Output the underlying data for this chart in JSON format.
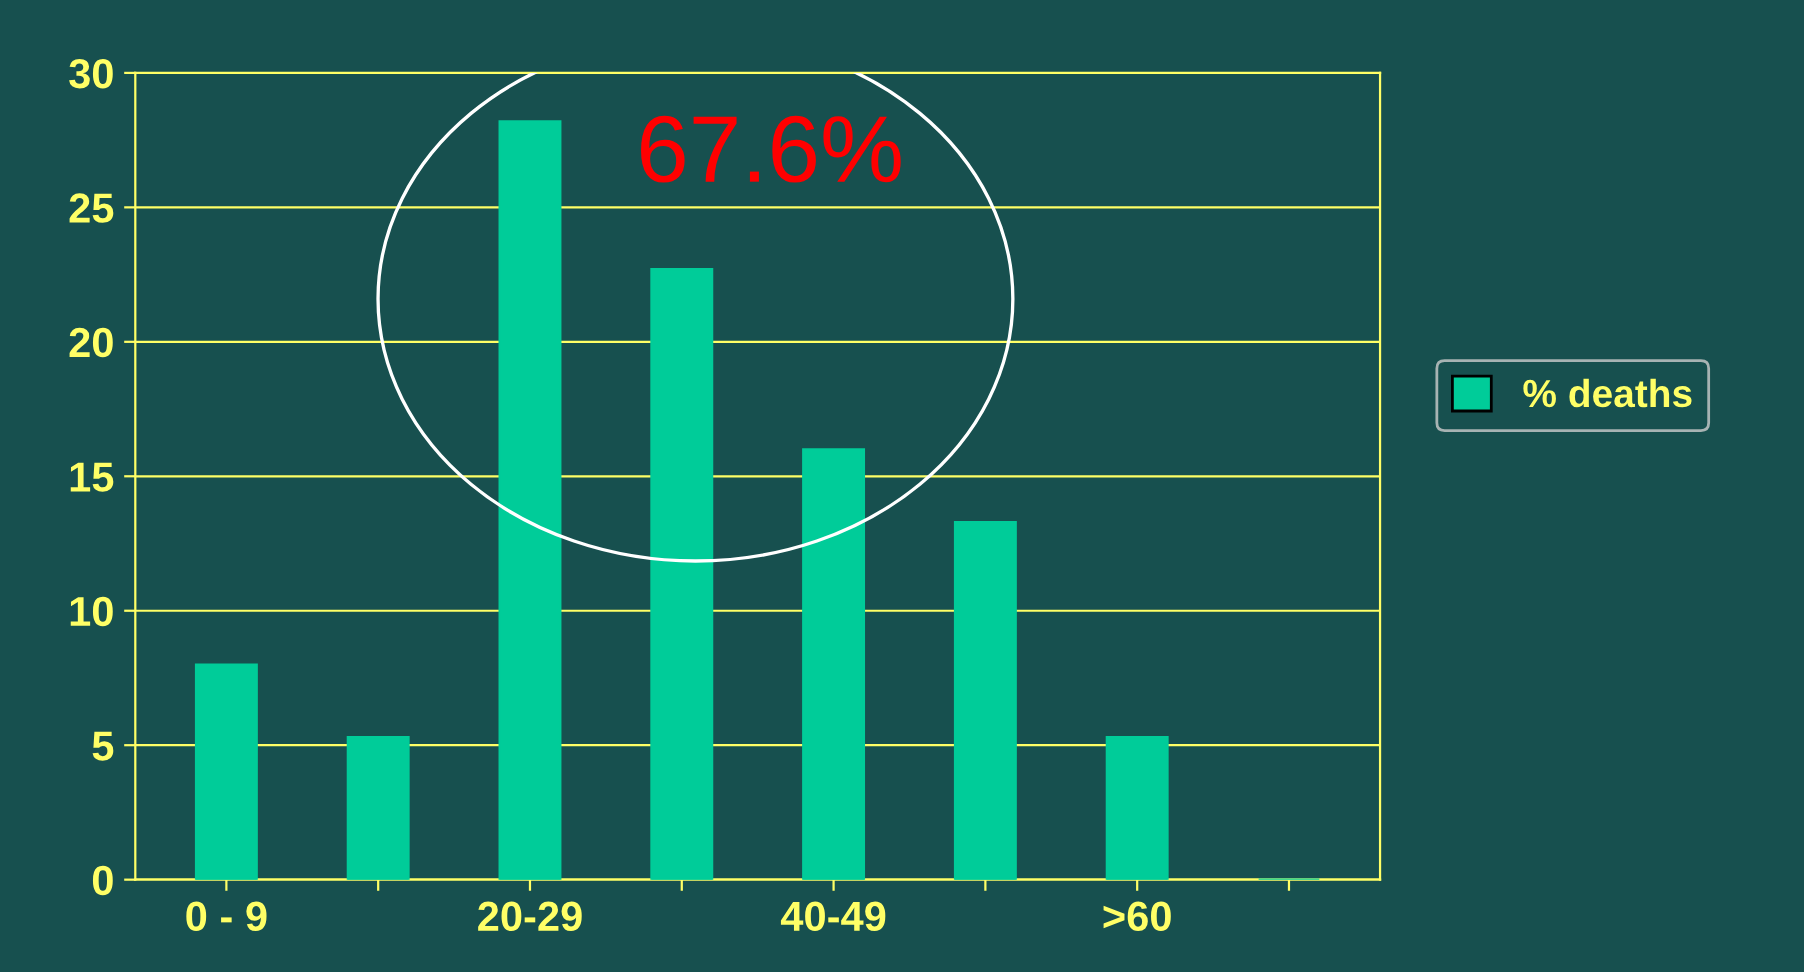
{
  "chart_data": {
    "type": "bar",
    "categories": [
      "0 - 9",
      null,
      "20-29",
      null,
      "40-49",
      null,
      ">60",
      null
    ],
    "series": [
      {
        "name": "% deaths",
        "color": "#00cc99",
        "values": [
          8,
          5.3,
          28.2,
          22.7,
          16,
          13.3,
          5.3,
          0
        ]
      }
    ],
    "ylim": [
      0,
      30
    ],
    "yticks": [
      0,
      5,
      10,
      15,
      20,
      25,
      30
    ],
    "grid": "y",
    "legend": "right",
    "annotations": [
      "67.6%"
    ]
  }
}
